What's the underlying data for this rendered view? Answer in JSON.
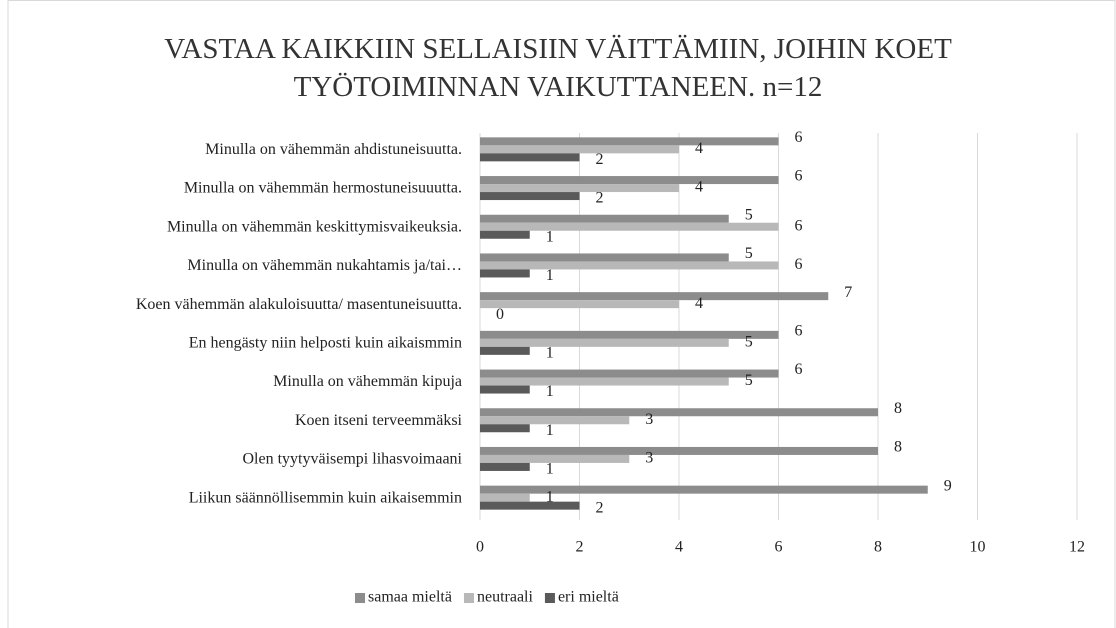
{
  "chart_data": {
    "type": "bar",
    "orientation": "horizontal",
    "title": "VASTAA KAIKKIIN SELLAISIIN VÄITTÄMIIN, JOIHIN KOET TYÖTOIMINNAN VAIKUTTANEEN. n=12",
    "categories": [
      "Minulla on vähemmän ahdistuneisuutta.",
      "Minulla on vähemmän hermostuneisuuutta.",
      "Minulla on vähemmän keskittymisvaikeuksia.",
      "Minulla on vähemmän nukahtamis ja/tai…",
      "Koen vähemmän alakuloisuutta/ masentuneisuutta.",
      "En hengästy niin helposti kuin aikaismmin",
      "Minulla on vähemmän kipuja",
      "Koen itseni terveemmäksi",
      "Olen tyytyväisempi lihasvoimaani",
      "Liikun säännöllisemmin kuin aikaisemmin"
    ],
    "series": [
      {
        "name": "samaa mieltä",
        "color": "#8c8c8c",
        "values": [
          6,
          6,
          5,
          5,
          7,
          6,
          6,
          8,
          8,
          9
        ]
      },
      {
        "name": "neutraali",
        "color": "#b8b8b8",
        "values": [
          4,
          4,
          6,
          6,
          4,
          5,
          5,
          3,
          3,
          1
        ]
      },
      {
        "name": "eri mieltä",
        "color": "#5a5a5a",
        "values": [
          2,
          2,
          1,
          1,
          0,
          1,
          1,
          1,
          1,
          2
        ]
      }
    ],
    "xlim": [
      0,
      12
    ],
    "xticks": [
      0,
      2,
      4,
      6,
      8,
      10,
      12
    ],
    "grid": true,
    "legend": "bottom"
  }
}
